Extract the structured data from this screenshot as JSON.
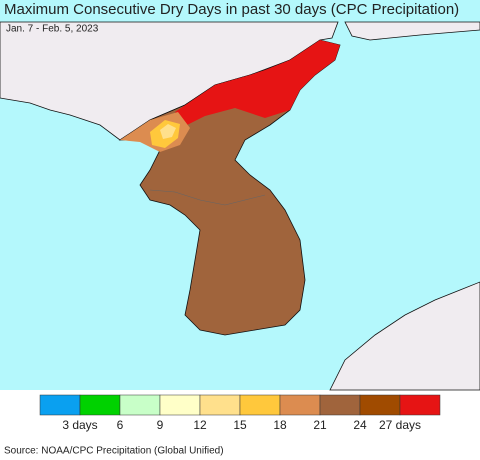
{
  "title": "Maximum Consecutive Dry Days in past 30 days (CPC Precipitation)",
  "subtitle": "Jan. 7 - Feb. 5, 2023",
  "legend": {
    "colors": [
      "#0aa0f0",
      "#00d200",
      "#c8ffc8",
      "#ffffc8",
      "#ffe08c",
      "#ffc83c",
      "#dc8c50",
      "#a0643c",
      "#a04b00",
      "#e61414"
    ],
    "labels": [
      "3 days",
      "6",
      "9",
      "12",
      "15",
      "18",
      "21",
      "24",
      "27 days"
    ]
  },
  "source": "Source: NOAA/CPC Precipitation (Global Unified)"
}
